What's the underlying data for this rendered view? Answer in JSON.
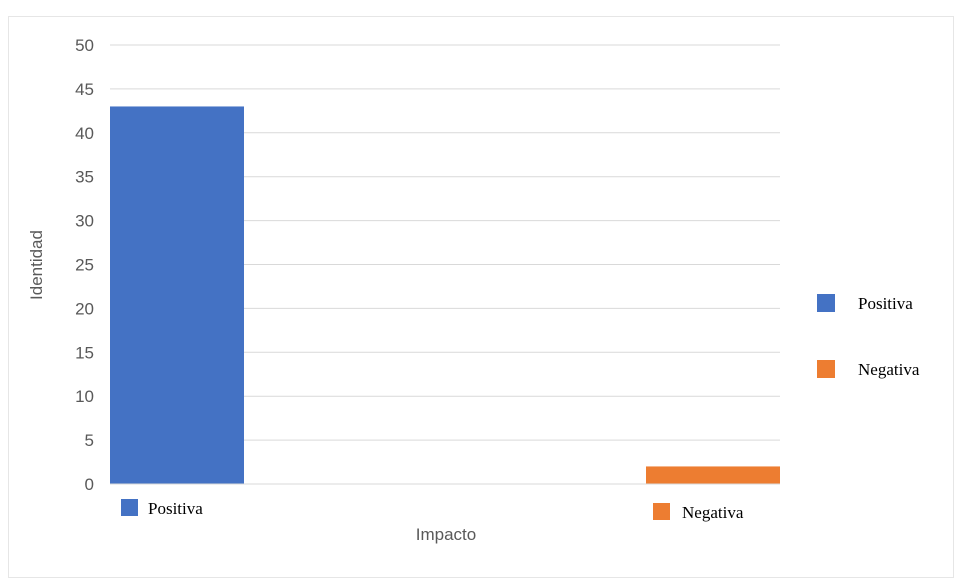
{
  "chart_data": {
    "type": "bar",
    "categories": [
      "Positiva",
      "Negativa"
    ],
    "values": [
      43,
      2
    ],
    "colors": [
      "#4472c4",
      "#ed7d31"
    ],
    "xlabel": "Impacto",
    "ylabel": "Identidad",
    "ylim": [
      0,
      50
    ],
    "yticks": [
      0,
      5,
      10,
      15,
      20,
      25,
      30,
      35,
      40,
      45,
      50
    ],
    "grid": true,
    "legend": {
      "placement": "right",
      "entries": [
        {
          "label": "Positiva",
          "color": "#4472c4"
        },
        {
          "label": "Negativa",
          "color": "#ed7d31"
        }
      ]
    },
    "category_labels": [
      {
        "label": "Positiva",
        "color": "#4472c4"
      },
      {
        "label": "Negativa",
        "color": "#ed7d31"
      }
    ]
  }
}
